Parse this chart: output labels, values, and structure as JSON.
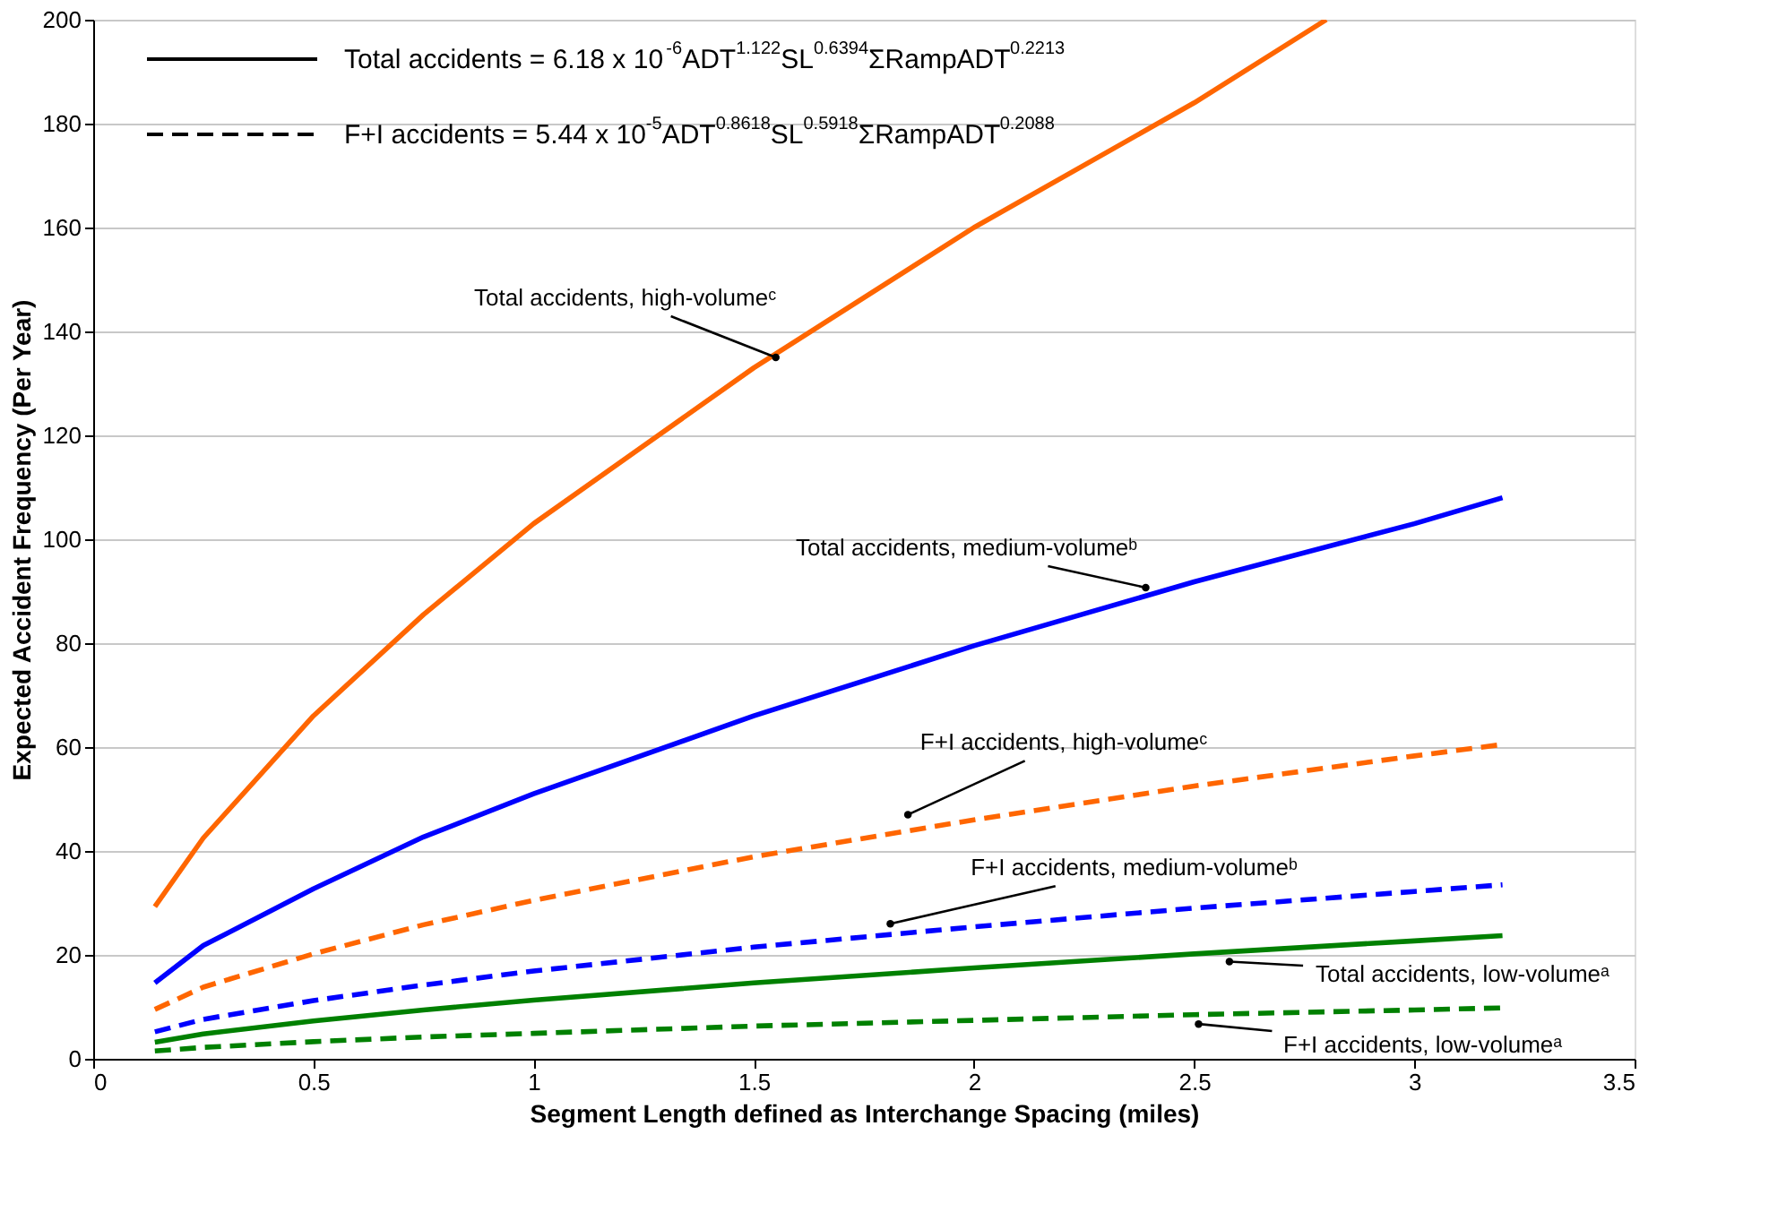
{
  "chart_data": {
    "type": "line",
    "xlabel": "Segment Length defined as Interchange Spacing (miles)",
    "ylabel": "Expected Accident Frequency (Per Year)",
    "x": [
      0.14,
      0.25,
      0.5,
      0.75,
      1,
      1.5,
      2,
      2.5,
      3,
      3.2
    ],
    "xlim": [
      0,
      3.5
    ],
    "xticks": [
      0,
      0.5,
      1,
      1.5,
      2,
      2.5,
      3,
      3.5
    ],
    "ylim": [
      0,
      200
    ],
    "yticks": [
      0,
      20,
      40,
      60,
      80,
      100,
      120,
      140,
      160,
      180,
      200
    ],
    "grid": "y",
    "marker": "none",
    "series": [
      {
        "color": "#ff6600",
        "line_style": "solid",
        "x": [
          0.14,
          0.25,
          0.5,
          0.75,
          1,
          1.5,
          2,
          2.5,
          2.8
        ],
        "values": [
          29.3,
          42.5,
          66,
          85.5,
          103,
          133,
          160,
          184,
          200
        ]
      },
      {
        "color": "#0000ff",
        "line_style": "solid",
        "values": [
          14.6,
          21.8,
          32.7,
          42.7,
          51,
          66,
          79.5,
          91.8,
          103,
          108
        ]
      },
      {
        "color": "#ff6600",
        "line_style": "dashed",
        "values": [
          9.5,
          13.8,
          20.2,
          25.8,
          30.5,
          38.9,
          46.0,
          52.5,
          58.3,
          60.5
        ]
      },
      {
        "color": "#0000ff",
        "line_style": "dashed",
        "values": [
          5.2,
          7.6,
          11.2,
          14.2,
          16.9,
          21.5,
          25.4,
          29.0,
          32.2,
          33.5
        ]
      },
      {
        "color": "#008000",
        "line_style": "solid",
        "values": [
          3.2,
          4.8,
          7.3,
          9.4,
          11.3,
          14.6,
          17.5,
          20.2,
          22.7,
          23.7
        ]
      },
      {
        "color": "#008000",
        "line_style": "dashed",
        "values": [
          1.5,
          2.2,
          3.3,
          4.2,
          4.9,
          6.3,
          7.4,
          8.5,
          9.4,
          9.8
        ]
      }
    ],
    "annotations": [
      "Total accidents = 6.18 x 10$^{-6}$ADT$^{1.122}$SL$^{0.6394}$ΣRampADT$^{0.2213}$",
      "F+I accidents = 5.44 x 10$^{-5}$ADT$^{0.8618}$SL$^{0.5918}$ΣRampADT$^{0.2088}$",
      {
        "text": "Total accidents, high-volumeᶜ",
        "x": 1.55,
        "y": 135
      },
      {
        "text": "Total accidents, medium-volumeᵇ",
        "x": 2.39,
        "y": 90.7
      },
      {
        "text": "F+I accidents, high-volumeᶜ",
        "x": 1.85,
        "y": 47
      },
      {
        "text": "F+I accidents, medium-volumeᵇ",
        "x": 1.81,
        "y": 26
      },
      {
        "text": "Total accidents, low-volumeᵃ",
        "x": 2.58,
        "y": 18.7
      },
      {
        "text": "F+I accidents, low-volumeᵃ",
        "x": 2.51,
        "y": 6.7
      }
    ]
  }
}
